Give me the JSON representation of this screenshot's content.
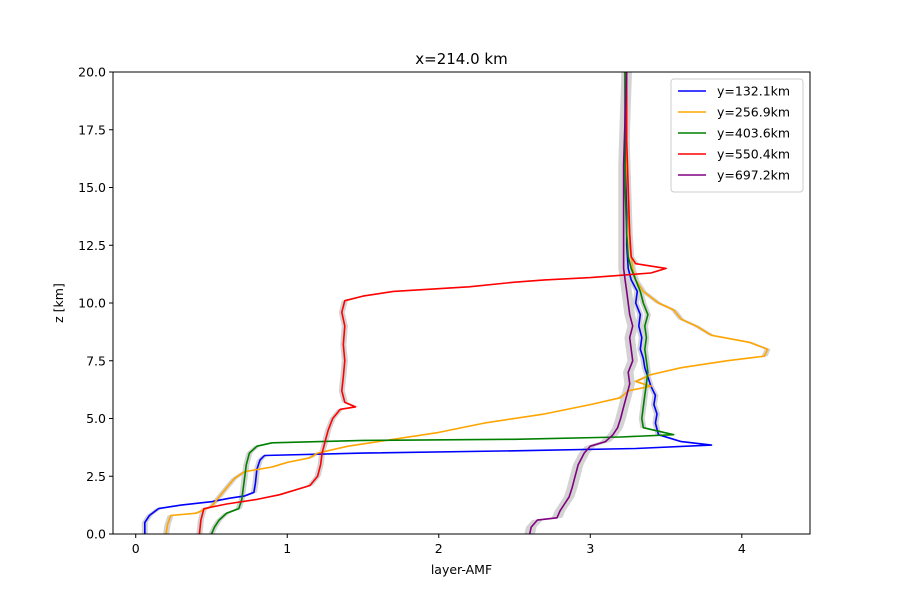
{
  "chart_data": {
    "type": "line",
    "title": "x=214.0 km",
    "xlabel": "layer-AMF",
    "ylabel": "z [km]",
    "xlim": [
      -0.15,
      4.45
    ],
    "ylim": [
      0,
      20
    ],
    "xticks": [
      0,
      1,
      2,
      3,
      4
    ],
    "xtick_labels": [
      "0",
      "1",
      "2",
      "3",
      "4"
    ],
    "yticks": [
      0,
      2.5,
      5,
      7.5,
      10,
      12.5,
      15,
      17.5,
      20
    ],
    "ytick_labels": [
      "0.0",
      "2.5",
      "5.0",
      "7.5",
      "10.0",
      "12.5",
      "15.0",
      "17.5",
      "20.0"
    ],
    "grid": false,
    "legend_position": "top-right",
    "band_color": "#d3d3d3",
    "series": [
      {
        "name": "y=132.1km",
        "color": "#0000ff",
        "band_halfwidth": 0.02,
        "points": [
          [
            0.06,
            0
          ],
          [
            0.06,
            0.5
          ],
          [
            0.09,
            0.8
          ],
          [
            0.15,
            1.1
          ],
          [
            0.3,
            1.25
          ],
          [
            0.5,
            1.4
          ],
          [
            0.62,
            1.55
          ],
          [
            0.72,
            1.65
          ],
          [
            0.78,
            1.8
          ],
          [
            0.79,
            2.2
          ],
          [
            0.8,
            2.8
          ],
          [
            0.82,
            3.2
          ],
          [
            0.85,
            3.4
          ],
          [
            1.5,
            3.5
          ],
          [
            2.5,
            3.6
          ],
          [
            3.3,
            3.7
          ],
          [
            3.8,
            3.85
          ],
          [
            3.6,
            4.0
          ],
          [
            3.45,
            4.3
          ],
          [
            3.43,
            4.8
          ],
          [
            3.44,
            5.2
          ],
          [
            3.42,
            5.6
          ],
          [
            3.43,
            6.0
          ],
          [
            3.4,
            6.4
          ],
          [
            3.38,
            6.8
          ],
          [
            3.36,
            7.2
          ],
          [
            3.35,
            7.6
          ],
          [
            3.33,
            8.0
          ],
          [
            3.34,
            8.5
          ],
          [
            3.32,
            9.0
          ],
          [
            3.33,
            9.5
          ],
          [
            3.3,
            10.0
          ],
          [
            3.31,
            10.5
          ],
          [
            3.27,
            11.0
          ],
          [
            3.25,
            11.5
          ],
          [
            3.24,
            12.5
          ],
          [
            3.24,
            14
          ],
          [
            3.24,
            16
          ],
          [
            3.23,
            18
          ],
          [
            3.23,
            20
          ]
        ]
      },
      {
        "name": "y=256.9km",
        "color": "#ffa500",
        "band_halfwidth": 0.02,
        "points": [
          [
            0.2,
            0
          ],
          [
            0.21,
            0.4
          ],
          [
            0.23,
            0.8
          ],
          [
            0.4,
            0.9
          ],
          [
            0.5,
            1.2
          ],
          [
            0.55,
            1.6
          ],
          [
            0.6,
            2.0
          ],
          [
            0.65,
            2.4
          ],
          [
            0.72,
            2.7
          ],
          [
            0.9,
            2.9
          ],
          [
            1.0,
            3.1
          ],
          [
            1.15,
            3.3
          ],
          [
            1.2,
            3.5
          ],
          [
            1.4,
            3.8
          ],
          [
            1.7,
            4.1
          ],
          [
            2.0,
            4.4
          ],
          [
            2.3,
            4.8
          ],
          [
            2.7,
            5.2
          ],
          [
            3.0,
            5.6
          ],
          [
            3.2,
            5.9
          ],
          [
            3.25,
            6.2
          ],
          [
            3.4,
            6.4
          ],
          [
            3.3,
            6.6
          ],
          [
            3.4,
            6.9
          ],
          [
            3.6,
            7.2
          ],
          [
            3.9,
            7.5
          ],
          [
            4.15,
            7.7
          ],
          [
            4.17,
            8.0
          ],
          [
            4.05,
            8.3
          ],
          [
            3.8,
            8.6
          ],
          [
            3.7,
            9.0
          ],
          [
            3.6,
            9.3
          ],
          [
            3.55,
            9.7
          ],
          [
            3.45,
            10.0
          ],
          [
            3.35,
            10.5
          ],
          [
            3.3,
            11.0
          ],
          [
            3.28,
            11.5
          ],
          [
            3.26,
            12.5
          ],
          [
            3.25,
            14
          ],
          [
            3.24,
            16
          ],
          [
            3.24,
            18
          ],
          [
            3.23,
            20
          ]
        ]
      },
      {
        "name": "y=403.6km",
        "color": "#008000",
        "band_halfwidth": 0.02,
        "points": [
          [
            0.5,
            0
          ],
          [
            0.52,
            0.3
          ],
          [
            0.55,
            0.6
          ],
          [
            0.6,
            0.9
          ],
          [
            0.68,
            1.1
          ],
          [
            0.7,
            1.5
          ],
          [
            0.71,
            2.0
          ],
          [
            0.72,
            2.5
          ],
          [
            0.73,
            3.0
          ],
          [
            0.75,
            3.5
          ],
          [
            0.8,
            3.8
          ],
          [
            0.9,
            3.95
          ],
          [
            1.5,
            4.05
          ],
          [
            2.5,
            4.1
          ],
          [
            3.2,
            4.2
          ],
          [
            3.55,
            4.3
          ],
          [
            3.35,
            4.6
          ],
          [
            3.34,
            5.0
          ],
          [
            3.35,
            5.5
          ],
          [
            3.36,
            6.0
          ],
          [
            3.37,
            6.5
          ],
          [
            3.38,
            7.0
          ],
          [
            3.37,
            7.5
          ],
          [
            3.36,
            8.0
          ],
          [
            3.37,
            8.5
          ],
          [
            3.36,
            9.0
          ],
          [
            3.38,
            9.5
          ],
          [
            3.35,
            10.0
          ],
          [
            3.33,
            10.5
          ],
          [
            3.3,
            11.0
          ],
          [
            3.27,
            11.5
          ],
          [
            3.25,
            12.0
          ],
          [
            3.24,
            13
          ],
          [
            3.23,
            15
          ],
          [
            3.23,
            17
          ],
          [
            3.23,
            20
          ]
        ]
      },
      {
        "name": "y=550.4km",
        "color": "#ff0000",
        "band_halfwidth": 0.02,
        "points": [
          [
            0.42,
            0
          ],
          [
            0.43,
            0.6
          ],
          [
            0.45,
            1.1
          ],
          [
            0.6,
            1.3
          ],
          [
            0.8,
            1.5
          ],
          [
            0.95,
            1.7
          ],
          [
            1.05,
            1.9
          ],
          [
            1.15,
            2.1
          ],
          [
            1.2,
            2.5
          ],
          [
            1.22,
            3.0
          ],
          [
            1.23,
            3.5
          ],
          [
            1.25,
            4.0
          ],
          [
            1.27,
            4.5
          ],
          [
            1.3,
            5.0
          ],
          [
            1.35,
            5.4
          ],
          [
            1.45,
            5.5
          ],
          [
            1.38,
            5.7
          ],
          [
            1.36,
            6.2
          ],
          [
            1.37,
            6.8
          ],
          [
            1.38,
            7.5
          ],
          [
            1.37,
            8.2
          ],
          [
            1.38,
            9.0
          ],
          [
            1.36,
            9.6
          ],
          [
            1.38,
            10.1
          ],
          [
            1.5,
            10.3
          ],
          [
            1.7,
            10.5
          ],
          [
            2.2,
            10.7
          ],
          [
            2.5,
            10.9
          ],
          [
            2.7,
            11.0
          ],
          [
            3.0,
            11.1
          ],
          [
            3.2,
            11.2
          ],
          [
            3.4,
            11.3
          ],
          [
            3.5,
            11.5
          ],
          [
            3.3,
            11.7
          ],
          [
            3.27,
            12.0
          ],
          [
            3.26,
            13
          ],
          [
            3.25,
            15
          ],
          [
            3.24,
            17
          ],
          [
            3.24,
            20
          ]
        ]
      },
      {
        "name": "y=697.2km",
        "color": "#800080",
        "band_halfwidth": 0.035,
        "points": [
          [
            2.6,
            0
          ],
          [
            2.61,
            0.3
          ],
          [
            2.65,
            0.6
          ],
          [
            2.78,
            0.7
          ],
          [
            2.8,
            1.0
          ],
          [
            2.83,
            1.3
          ],
          [
            2.86,
            1.6
          ],
          [
            2.88,
            2.0
          ],
          [
            2.9,
            2.5
          ],
          [
            2.92,
            3.0
          ],
          [
            2.96,
            3.5
          ],
          [
            3.0,
            3.8
          ],
          [
            3.1,
            4.0
          ],
          [
            3.15,
            4.3
          ],
          [
            3.18,
            4.6
          ],
          [
            3.2,
            5.0
          ],
          [
            3.22,
            5.5
          ],
          [
            3.24,
            6.0
          ],
          [
            3.26,
            6.5
          ],
          [
            3.25,
            7.0
          ],
          [
            3.28,
            7.5
          ],
          [
            3.27,
            8.0
          ],
          [
            3.26,
            8.5
          ],
          [
            3.28,
            9.0
          ],
          [
            3.26,
            9.5
          ],
          [
            3.25,
            10.0
          ],
          [
            3.24,
            10.5
          ],
          [
            3.23,
            11.0
          ],
          [
            3.22,
            11.5
          ],
          [
            3.22,
            12.5
          ],
          [
            3.22,
            14
          ],
          [
            3.22,
            16
          ],
          [
            3.23,
            18
          ],
          [
            3.24,
            20
          ]
        ]
      }
    ]
  }
}
